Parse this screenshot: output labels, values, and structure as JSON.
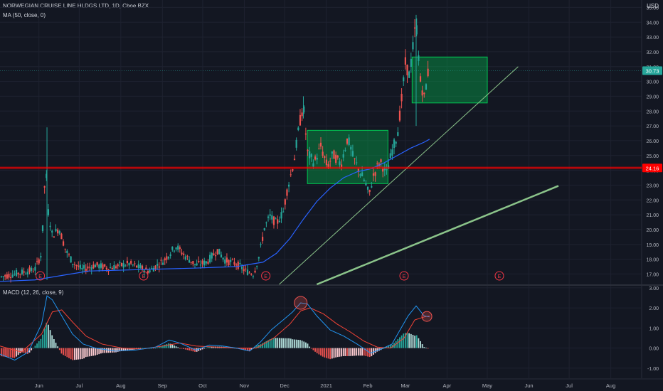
{
  "header": {
    "symbol_line": "NORWEGIAN CRUISE LINE HLDGS LTD, 1D, Cboe BZX",
    "ma_label": "MA (50, close, 0)",
    "currency": "USD"
  },
  "colors": {
    "background": "#131722",
    "grid": "#1e2230",
    "up": "#26a69a",
    "down": "#ef5350",
    "ma": "#2962ff",
    "macd": "#2196f3",
    "signal": "#f44336",
    "support": "#ff0000",
    "box": "#00c853",
    "trend": "#8bc48a"
  },
  "chart_data": {
    "type": "candlestick",
    "title": "NORWEGIAN CRUISE LINE HLDGS LTD, 1D, Cboe BZX",
    "price_axis": {
      "min": 16.3,
      "max": 35.5,
      "ticks": [
        "17.00",
        "18.00",
        "19.00",
        "20.00",
        "21.00",
        "22.00",
        "23.00",
        "24.00",
        "25.00",
        "26.00",
        "27.00",
        "28.00",
        "29.00",
        "30.00",
        "31.00",
        "32.00",
        "33.00",
        "34.00",
        "35.00"
      ],
      "last_price": "30.73",
      "support_label": "24.16",
      "support_level": 24.16
    },
    "time_axis": {
      "labels": [
        {
          "label": "Jun",
          "day": 3
        },
        {
          "label": "Jul",
          "day": 33
        },
        {
          "label": "Aug",
          "day": 64
        },
        {
          "label": "Sep",
          "day": 95
        },
        {
          "label": "Oct",
          "day": 125
        },
        {
          "label": "Nov",
          "day": 156
        },
        {
          "label": "Dec",
          "day": 186
        },
        {
          "label": "2021",
          "day": 217
        },
        {
          "label": "Feb",
          "day": 248
        },
        {
          "label": "Mar",
          "day": 276
        },
        {
          "label": "Apr",
          "day": 307
        },
        {
          "label": "May",
          "day": 337
        },
        {
          "label": "Jun",
          "day": 368
        },
        {
          "label": "Jul",
          "day": 398
        },
        {
          "label": "Aug",
          "day": 429
        }
      ],
      "day_range": [
        -26,
        452
      ]
    },
    "price_path": [
      [
        -26,
        16.8
      ],
      [
        -10,
        17.1
      ],
      [
        0,
        17.3
      ],
      [
        5,
        18.4
      ],
      [
        8,
        24.5
      ],
      [
        10,
        21.2
      ],
      [
        13,
        19.6
      ],
      [
        18,
        20.1
      ],
      [
        23,
        18.6
      ],
      [
        28,
        17.8
      ],
      [
        35,
        17.3
      ],
      [
        45,
        17.6
      ],
      [
        55,
        17.4
      ],
      [
        70,
        17.7
      ],
      [
        85,
        17.2
      ],
      [
        96,
        17.9
      ],
      [
        105,
        18.9
      ],
      [
        112,
        18.2
      ],
      [
        120,
        17.6
      ],
      [
        128,
        17.8
      ],
      [
        136,
        18.6
      ],
      [
        142,
        17.9
      ],
      [
        150,
        17.7
      ],
      [
        157,
        17.2
      ],
      [
        163,
        17.0
      ],
      [
        167,
        18.2
      ],
      [
        171,
        20.1
      ],
      [
        175,
        20.9
      ],
      [
        180,
        20.4
      ],
      [
        185,
        21.2
      ],
      [
        188,
        22.7
      ],
      [
        193,
        24.6
      ],
      [
        197,
        27.1
      ],
      [
        200,
        28.4
      ],
      [
        203,
        25.2
      ],
      [
        208,
        24.5
      ],
      [
        213,
        25.6
      ],
      [
        218,
        24.2
      ],
      [
        222,
        25.1
      ],
      [
        228,
        24.4
      ],
      [
        233,
        26.2
      ],
      [
        237,
        24.9
      ],
      [
        242,
        23.9
      ],
      [
        246,
        23.2
      ],
      [
        249,
        22.3
      ],
      [
        252,
        23.6
      ],
      [
        257,
        24.6
      ],
      [
        262,
        23.8
      ],
      [
        266,
        25.3
      ],
      [
        270,
        26.4
      ],
      [
        273,
        28.6
      ],
      [
        276,
        31.2
      ],
      [
        279,
        30.4
      ],
      [
        282,
        32.6
      ],
      [
        284,
        34.1
      ],
      [
        287,
        30.1
      ],
      [
        290,
        28.9
      ],
      [
        293,
        30.7
      ]
    ],
    "ma50_path": [
      [
        -26,
        16.5
      ],
      [
        0,
        16.6
      ],
      [
        20,
        16.9
      ],
      [
        40,
        17.2
      ],
      [
        80,
        17.3
      ],
      [
        120,
        17.4
      ],
      [
        150,
        17.5
      ],
      [
        170,
        17.8
      ],
      [
        180,
        18.4
      ],
      [
        190,
        19.4
      ],
      [
        200,
        20.7
      ],
      [
        210,
        21.9
      ],
      [
        220,
        22.8
      ],
      [
        230,
        23.5
      ],
      [
        240,
        23.9
      ],
      [
        250,
        24.1
      ],
      [
        260,
        24.5
      ],
      [
        270,
        25.0
      ],
      [
        280,
        25.5
      ],
      [
        290,
        25.9
      ],
      [
        294,
        26.1
      ]
    ],
    "boxes": [
      {
        "day_start": 203,
        "day_end": 263,
        "price_low": 23.1,
        "price_high": 26.7
      },
      {
        "day_start": 281,
        "day_end": 337,
        "price_low": 28.55,
        "price_high": 31.65
      }
    ],
    "trendlines": [
      {
        "from": [
          182,
          16.3
        ],
        "to": [
          360,
          31.0
        ],
        "width": "thin"
      },
      {
        "from": [
          210,
          16.3
        ],
        "to": [
          390,
          22.95
        ],
        "width": "thick"
      }
    ],
    "earnings_markers": [
      {
        "label": "E",
        "day": 4
      },
      {
        "label": "E",
        "day": 81
      },
      {
        "label": "E",
        "day": 172
      },
      {
        "label": "E",
        "day": 275
      },
      {
        "label": "E",
        "day": 346
      }
    ],
    "macd": {
      "label": "MACD (12, 26, close, 9)",
      "range": [
        -1.5,
        3.1
      ],
      "ticks": [
        "3.00",
        "2.00",
        "1.00",
        "0.00",
        "-1.00",
        "-2.00"
      ],
      "macd_path": [
        [
          -26,
          -0.3
        ],
        [
          -15,
          -0.6
        ],
        [
          -5,
          -0.2
        ],
        [
          5,
          1.2
        ],
        [
          9,
          2.6
        ],
        [
          13,
          2.4
        ],
        [
          20,
          1.6
        ],
        [
          28,
          0.7
        ],
        [
          36,
          0.2
        ],
        [
          45,
          0.0
        ],
        [
          60,
          -0.15
        ],
        [
          75,
          -0.1
        ],
        [
          90,
          0.05
        ],
        [
          100,
          0.4
        ],
        [
          108,
          0.25
        ],
        [
          120,
          -0.1
        ],
        [
          130,
          0.15
        ],
        [
          140,
          0.1
        ],
        [
          150,
          0.0
        ],
        [
          160,
          -0.15
        ],
        [
          168,
          0.3
        ],
        [
          176,
          0.9
        ],
        [
          185,
          1.4
        ],
        [
          192,
          1.8
        ],
        [
          198,
          2.25
        ],
        [
          203,
          2.2
        ],
        [
          210,
          1.6
        ],
        [
          220,
          0.9
        ],
        [
          230,
          0.6
        ],
        [
          240,
          0.2
        ],
        [
          250,
          -0.25
        ],
        [
          258,
          -0.05
        ],
        [
          266,
          0.2
        ],
        [
          272,
          0.9
        ],
        [
          278,
          1.6
        ],
        [
          284,
          2.1
        ],
        [
          290,
          1.6
        ],
        [
          294,
          1.55
        ]
      ],
      "signal_path": [
        [
          -26,
          0.1
        ],
        [
          -10,
          -0.2
        ],
        [
          5,
          0.7
        ],
        [
          13,
          1.8
        ],
        [
          20,
          1.9
        ],
        [
          28,
          1.3
        ],
        [
          38,
          0.6
        ],
        [
          50,
          0.2
        ],
        [
          65,
          0.0
        ],
        [
          80,
          -0.05
        ],
        [
          95,
          0.1
        ],
        [
          108,
          0.25
        ],
        [
          120,
          0.1
        ],
        [
          135,
          0.05
        ],
        [
          150,
          0.0
        ],
        [
          165,
          0.0
        ],
        [
          178,
          0.5
        ],
        [
          190,
          1.2
        ],
        [
          198,
          1.85
        ],
        [
          205,
          2.0
        ],
        [
          215,
          1.7
        ],
        [
          225,
          1.2
        ],
        [
          235,
          0.8
        ],
        [
          245,
          0.35
        ],
        [
          255,
          0.05
        ],
        [
          265,
          0.0
        ],
        [
          275,
          0.5
        ],
        [
          283,
          1.4
        ],
        [
          290,
          1.55
        ],
        [
          294,
          1.6
        ]
      ],
      "highlight_days": [
        198,
        292
      ]
    }
  }
}
